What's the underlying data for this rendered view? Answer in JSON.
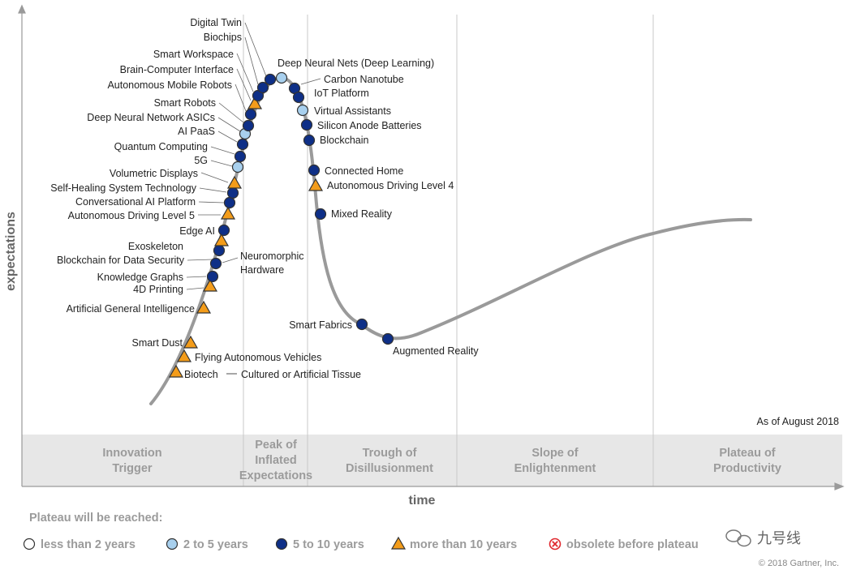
{
  "chart_data": {
    "type": "scatter",
    "subtype": "hype-cycle",
    "xlabel": "time",
    "ylabel": "expectations",
    "as_of": "As of August 2018",
    "phases": [
      {
        "label": "Innovation\nTrigger"
      },
      {
        "label": "Peak of\nInflated\nExpectations"
      },
      {
        "label": "Trough of\nDisillusionment"
      },
      {
        "label": "Slope of\nEnlightenment"
      },
      {
        "label": "Plateau of\nProductivity"
      }
    ],
    "legend_title": "Plateau will be reached:",
    "legend": [
      {
        "key": "lt2",
        "label": "less than 2 years",
        "symbol": "circle",
        "color": "#ffffff"
      },
      {
        "key": "2to5",
        "label": "2 to 5 years",
        "symbol": "circle",
        "color": "#a8d0ee"
      },
      {
        "key": "5to10",
        "label": "5 to 10 years",
        "symbol": "circle",
        "color": "#0e2f87"
      },
      {
        "key": "gt10",
        "label": "more than 10 years",
        "symbol": "triangle",
        "color": "#f39c1a"
      },
      {
        "key": "obsolete",
        "label": "obsolete before plateau",
        "symbol": "x-circle",
        "color": "#e0282e"
      }
    ],
    "points": [
      {
        "name": "Biotech — Cultured or Artificial Tissue",
        "cat": "gt10"
      },
      {
        "name": "Flying Autonomous Vehicles",
        "cat": "gt10"
      },
      {
        "name": "Smart Dust",
        "cat": "gt10"
      },
      {
        "name": "Artificial General Intelligence",
        "cat": "gt10"
      },
      {
        "name": "4D Printing",
        "cat": "gt10"
      },
      {
        "name": "Knowledge Graphs",
        "cat": "5to10"
      },
      {
        "name": "Neuromorphic Hardware",
        "cat": "5to10"
      },
      {
        "name": "Blockchain for Data Security",
        "cat": "5to10"
      },
      {
        "name": "Exoskeleton",
        "cat": "gt10"
      },
      {
        "name": "Edge AI",
        "cat": "5to10"
      },
      {
        "name": "Autonomous Driving Level 5",
        "cat": "gt10"
      },
      {
        "name": "Conversational AI Platform",
        "cat": "5to10"
      },
      {
        "name": "Self-Healing System Technology",
        "cat": "5to10"
      },
      {
        "name": "Volumetric Displays",
        "cat": "gt10"
      },
      {
        "name": "5G",
        "cat": "2to5"
      },
      {
        "name": "Quantum Computing",
        "cat": "5to10"
      },
      {
        "name": "AI PaaS",
        "cat": "5to10"
      },
      {
        "name": "Deep Neural Network ASICs",
        "cat": "2to5"
      },
      {
        "name": "Smart Robots",
        "cat": "5to10"
      },
      {
        "name": "Autonomous Mobile Robots",
        "cat": "5to10"
      },
      {
        "name": "Brain-Computer Interface",
        "cat": "gt10"
      },
      {
        "name": "Smart Workspace",
        "cat": "5to10"
      },
      {
        "name": "Biochips",
        "cat": "5to10"
      },
      {
        "name": "Digital Twin",
        "cat": "5to10"
      },
      {
        "name": "Deep Neural Nets (Deep Learning)",
        "cat": "2to5"
      },
      {
        "name": "Carbon Nanotube",
        "cat": "5to10"
      },
      {
        "name": "IoT Platform",
        "cat": "5to10"
      },
      {
        "name": "Virtual Assistants",
        "cat": "2to5"
      },
      {
        "name": "Silicon Anode Batteries",
        "cat": "5to10"
      },
      {
        "name": "Blockchain",
        "cat": "5to10"
      },
      {
        "name": "Connected Home",
        "cat": "5to10"
      },
      {
        "name": "Autonomous Driving Level 4",
        "cat": "gt10"
      },
      {
        "name": "Mixed Reality",
        "cat": "5to10"
      },
      {
        "name": "Smart Fabrics",
        "cat": "5to10"
      },
      {
        "name": "Augmented Reality",
        "cat": "5to10"
      }
    ]
  },
  "footer": {
    "watermark": "九号线",
    "copyright": "© 2018 Gartner, Inc."
  }
}
